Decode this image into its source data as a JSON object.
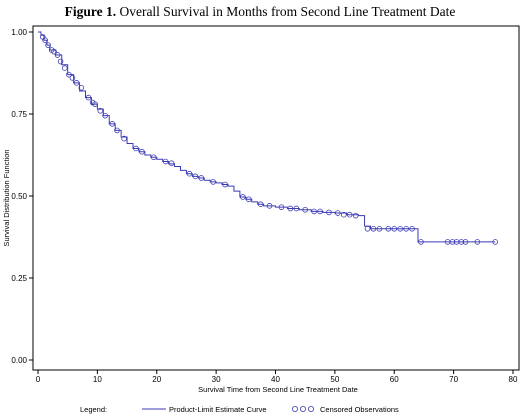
{
  "figure": {
    "title_bold": "Figure 1.",
    "title_rest": " Overall Survival in Months from Second Line Treatment Date"
  },
  "chart_data": {
    "type": "line",
    "title": "Figure 1. Overall Survival in Months from Second Line Treatment Date",
    "xlabel": "Survival Time from Second Line Treatment Date",
    "ylabel": "Survival Distribution Function",
    "xlim": [
      0,
      80
    ],
    "ylim": [
      0,
      1
    ],
    "x_ticks": [
      0,
      10,
      20,
      30,
      40,
      50,
      60,
      70,
      80
    ],
    "y_ticks": [
      "0.00",
      "0.25",
      "0.50",
      "0.75",
      "1.00"
    ],
    "grid": false,
    "legend": {
      "title": "Legend:",
      "placement": "bottom",
      "entries": [
        "Product-Limit Estimate Curve",
        "Censored Observations"
      ]
    },
    "line_color": "#3b3bb5",
    "series": [
      {
        "name": "Product-Limit Estimate Curve",
        "step": true,
        "points": [
          [
            0,
            1.0
          ],
          [
            0.5,
            0.99
          ],
          [
            1,
            0.975
          ],
          [
            1.5,
            0.96
          ],
          [
            2,
            0.945
          ],
          [
            3,
            0.93
          ],
          [
            4,
            0.9
          ],
          [
            5,
            0.87
          ],
          [
            6,
            0.845
          ],
          [
            7,
            0.82
          ],
          [
            8,
            0.8
          ],
          [
            9,
            0.78
          ],
          [
            10,
            0.765
          ],
          [
            11,
            0.745
          ],
          [
            12,
            0.72
          ],
          [
            13,
            0.7
          ],
          [
            14,
            0.68
          ],
          [
            15,
            0.66
          ],
          [
            16,
            0.645
          ],
          [
            17,
            0.635
          ],
          [
            18,
            0.625
          ],
          [
            19,
            0.618
          ],
          [
            20,
            0.612
          ],
          [
            21,
            0.605
          ],
          [
            22,
            0.598
          ],
          [
            23,
            0.59
          ],
          [
            24,
            0.578
          ],
          [
            25,
            0.568
          ],
          [
            26,
            0.56
          ],
          [
            27,
            0.555
          ],
          [
            28,
            0.548
          ],
          [
            29,
            0.543
          ],
          [
            30,
            0.54
          ],
          [
            31,
            0.535
          ],
          [
            32,
            0.53
          ],
          [
            33,
            0.515
          ],
          [
            34,
            0.497
          ],
          [
            35,
            0.49
          ],
          [
            36,
            0.482
          ],
          [
            37,
            0.475
          ],
          [
            38,
            0.47
          ],
          [
            40,
            0.466
          ],
          [
            42,
            0.462
          ],
          [
            44,
            0.458
          ],
          [
            46,
            0.453
          ],
          [
            48,
            0.45
          ],
          [
            50,
            0.448
          ],
          [
            52,
            0.443
          ],
          [
            54,
            0.44
          ],
          [
            55,
            0.408
          ],
          [
            56,
            0.4
          ],
          [
            64,
            0.36
          ],
          [
            77,
            0.36
          ]
        ]
      },
      {
        "name": "Censored Observations",
        "points": [
          [
            0.8,
            0.985
          ],
          [
            1.2,
            0.975
          ],
          [
            1.7,
            0.96
          ],
          [
            2.3,
            0.945
          ],
          [
            2.7,
            0.94
          ],
          [
            3.3,
            0.93
          ],
          [
            3.8,
            0.91
          ],
          [
            4.5,
            0.89
          ],
          [
            5.2,
            0.87
          ],
          [
            5.8,
            0.86
          ],
          [
            6.5,
            0.845
          ],
          [
            7.3,
            0.83
          ],
          [
            8.5,
            0.8
          ],
          [
            9.2,
            0.785
          ],
          [
            9.6,
            0.78
          ],
          [
            10.5,
            0.76
          ],
          [
            11.3,
            0.745
          ],
          [
            12.5,
            0.72
          ],
          [
            13.3,
            0.7
          ],
          [
            14.5,
            0.675
          ],
          [
            16.5,
            0.645
          ],
          [
            17.5,
            0.635
          ],
          [
            19.5,
            0.618
          ],
          [
            21.5,
            0.605
          ],
          [
            22.5,
            0.6
          ],
          [
            25.5,
            0.568
          ],
          [
            26.5,
            0.56
          ],
          [
            27.5,
            0.555
          ],
          [
            29.5,
            0.543
          ],
          [
            31.5,
            0.535
          ],
          [
            34.5,
            0.497
          ],
          [
            35.5,
            0.49
          ],
          [
            37.5,
            0.475
          ],
          [
            39,
            0.47
          ],
          [
            41,
            0.466
          ],
          [
            42.5,
            0.462
          ],
          [
            43.5,
            0.462
          ],
          [
            45,
            0.458
          ],
          [
            46.5,
            0.453
          ],
          [
            47.5,
            0.453
          ],
          [
            49,
            0.45
          ],
          [
            50.5,
            0.448
          ],
          [
            51.5,
            0.443
          ],
          [
            52.5,
            0.443
          ],
          [
            53.5,
            0.44
          ],
          [
            55.5,
            0.4
          ],
          [
            56.5,
            0.4
          ],
          [
            57.5,
            0.4
          ],
          [
            59,
            0.4
          ],
          [
            60,
            0.4
          ],
          [
            61,
            0.4
          ],
          [
            62,
            0.4
          ],
          [
            63,
            0.4
          ],
          [
            64.5,
            0.36
          ],
          [
            69,
            0.36
          ],
          [
            69.8,
            0.36
          ],
          [
            70.5,
            0.36
          ],
          [
            71.3,
            0.36
          ],
          [
            72,
            0.36
          ],
          [
            74,
            0.36
          ],
          [
            77,
            0.36
          ]
        ]
      }
    ]
  }
}
